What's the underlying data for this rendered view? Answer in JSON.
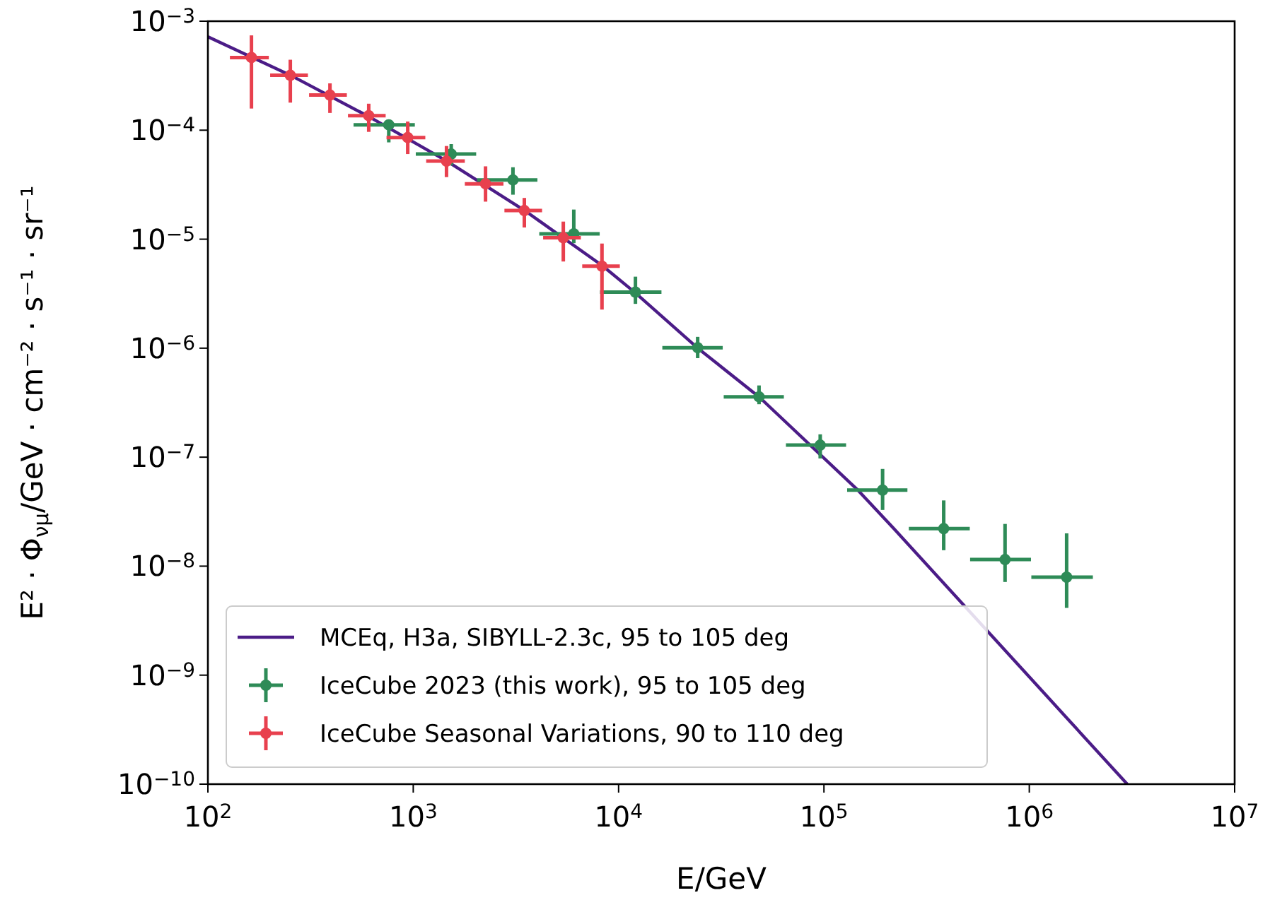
{
  "chart_data": {
    "type": "scatter",
    "xlabel": "E/GeV",
    "ylabel": "E² · Φ$_{νμ}$/GeV · cm⁻² · s⁻¹ · sr⁻¹",
    "log": "xy",
    "grid": false,
    "legend": "bottom left",
    "marker": "circle",
    "xlim": [
      100,
      10000000
    ],
    "ylim": [
      1e-10,
      0.001
    ],
    "xticks": [
      {
        "value": 100,
        "label": "10$^{2}$"
      },
      {
        "value": 1000,
        "label": "10$^{3}$"
      },
      {
        "value": 10000,
        "label": "10$^{4}$"
      },
      {
        "value": 100000,
        "label": "10$^{5}$"
      },
      {
        "value": 1000000,
        "label": "10$^{6}$"
      },
      {
        "value": 10000000,
        "label": "10$^{7}$"
      }
    ],
    "yticks": [
      {
        "value": 1e-10,
        "label": "10$^{−10}$"
      },
      {
        "value": 1e-09,
        "label": "10$^{−9}$"
      },
      {
        "value": 1e-08,
        "label": "10$^{−8}$"
      },
      {
        "value": 1e-07,
        "label": "10$^{−7}$"
      },
      {
        "value": 1e-06,
        "label": "10$^{−6}$"
      },
      {
        "value": 1e-05,
        "label": "10$^{−5}$"
      },
      {
        "value": 0.0001,
        "label": "10$^{−4}$"
      },
      {
        "value": 0.001,
        "label": "10$^{−3}$"
      }
    ],
    "series": [
      {
        "name": "MCEq, H3a, SIBYLL-2.3c, 95 to 105 deg",
        "type": "line",
        "line_style": "solid",
        "marker": "none",
        "color": "#4b1c87",
        "x": [
          100,
          251,
          600,
          1459,
          3490,
          8350,
          12020,
          24150,
          48500,
          147000,
          219000,
          1210000,
          3000000
        ],
        "values": [
          0.00072,
          0.000321,
          0.000135,
          5.2e-05,
          1.83e-05,
          5.7e-06,
          3.24e-06,
          1.01e-06,
          3.55e-07,
          4.94e-08,
          2.21e-08,
          6.5e-10,
          1e-10
        ]
      },
      {
        "name": "IceCube 2023 (this work), 95 to 105 deg",
        "type": "scatter",
        "color": "#2e8b57",
        "x": [
          760,
          1531,
          3059,
          6050,
          12080,
          24270,
          48300,
          95900,
          193000,
          383000,
          762000,
          1520000
        ],
        "values": [
          0.000112,
          6.04e-05,
          3.5e-05,
          1.12e-05,
          3.27e-06,
          1.01e-06,
          3.58e-07,
          1.29e-07,
          4.99e-08,
          2.21e-08,
          1.15e-08,
          7.93e-09
        ],
        "xerrors": [
          [
            512,
            1018
          ],
          [
            1029,
            2025
          ],
          [
            2045,
            4025
          ],
          [
            4108,
            8090
          ],
          [
            8120,
            16170
          ],
          [
            16330,
            32140
          ],
          [
            32500,
            63800
          ],
          [
            65300,
            128200
          ],
          [
            129700,
            255000
          ],
          [
            259000,
            513000
          ],
          [
            515000,
            1019000
          ],
          [
            1023000,
            2040000
          ]
        ],
        "errors": [
          [
            7.73e-05,
            0.00012
          ],
          [
            4.75e-05,
            7.45e-05
          ],
          [
            2.56e-05,
            4.57e-05
          ],
          [
            9.2e-06,
            1.87e-05
          ],
          [
            2.55e-06,
            4.53e-06
          ],
          [
            8.1e-07,
            1.27e-06
          ],
          [
            3.06e-07,
            4.55e-07
          ],
          [
            9.73e-08,
            1.62e-07
          ],
          [
            3.28e-08,
            7.8e-08
          ],
          [
            1.4e-08,
            4.01e-08
          ],
          [
            7.16e-09,
            2.44e-08
          ],
          [
            4.14e-09,
            2e-08
          ]
        ]
      },
      {
        "name": "IceCube Seasonal Variations, 90 to 110 deg",
        "type": "scatter",
        "color": "#e8404e",
        "x": [
          163,
          252,
          393,
          607,
          940,
          1452,
          2249,
          3475,
          5380,
          8300
        ],
        "values": [
          0.000464,
          0.000319,
          0.00021,
          0.000136,
          8.57e-05,
          5.2e-05,
          3.22e-05,
          1.83e-05,
          1.03e-05,
          5.65e-06
        ],
        "xerrors": [
          [
            128,
            198
          ],
          [
            201,
            307
          ],
          [
            311,
            475
          ],
          [
            481,
            734
          ],
          [
            741,
            1145
          ],
          [
            1156,
            1783
          ],
          [
            1783,
            2750
          ],
          [
            2780,
            4240
          ],
          [
            4290,
            6550
          ],
          [
            6650,
            10140
          ]
        ],
        "errors": [
          [
            0.000158,
            0.000741
          ],
          [
            0.000179,
            0.000443
          ],
          [
            0.000144,
            0.000269
          ],
          [
            9.65e-05,
            0.000175
          ],
          [
            6.04e-05,
            0.00012
          ],
          [
            3.71e-05,
            7.16e-05
          ],
          [
            2.21e-05,
            4.66e-05
          ],
          [
            1.28e-05,
            2.39e-05
          ],
          [
            6.24e-06,
            1.45e-05
          ],
          [
            2.26e-06,
            9.12e-06
          ]
        ]
      }
    ]
  }
}
